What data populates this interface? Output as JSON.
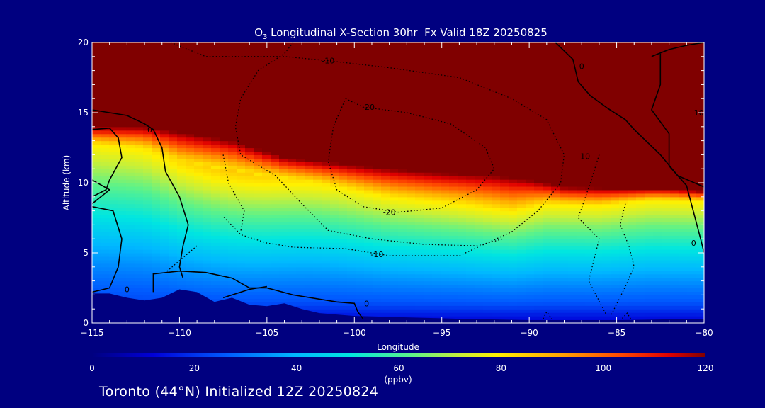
{
  "footer": "Toronto (44°N) Initialized 12Z 20250824",
  "chart_data": {
    "type": "heatmap",
    "title_prefix": "O",
    "title_subscript": "3",
    "title_rest": " Longitudinal X-Section 30hr  Fx Valid 18Z 20250825",
    "xlabel": "Longitude",
    "ylabel": "Altitude (km)",
    "xlim": [
      -115,
      -80
    ],
    "ylim": [
      0,
      20
    ],
    "x_ticks": [
      -115,
      -110,
      -105,
      -100,
      -95,
      -90,
      -85,
      -80
    ],
    "y_ticks": [
      0,
      5,
      10,
      15,
      20
    ],
    "colorbar": {
      "label": "(ppbv)",
      "range": [
        0,
        120
      ],
      "ticks": [
        0,
        20,
        40,
        60,
        80,
        100,
        120
      ]
    },
    "colors": {
      "background": "#000080",
      "terrain": "#000080",
      "high_ozone": "#800000"
    },
    "ozone_field": {
      "description_free": true,
      "tropopause_height_km": [
        [
          -115,
          14.0
        ],
        [
          -112,
          14.0
        ],
        [
          -110,
          13.6
        ],
        [
          -107,
          13.0
        ],
        [
          -104,
          11.8
        ],
        [
          -101,
          11.4
        ],
        [
          -98,
          11.0
        ],
        [
          -95,
          10.7
        ],
        [
          -92,
          10.5
        ],
        [
          -90,
          10.2
        ],
        [
          -88,
          9.7
        ],
        [
          -85,
          9.6
        ],
        [
          -82,
          9.6
        ],
        [
          -80,
          9.4
        ]
      ],
      "mid_maximum": [
        [
          -115,
          12.8
        ],
        [
          -112,
          12.5
        ],
        [
          -110,
          11.5
        ],
        [
          -105,
          10.5
        ],
        [
          -102,
          10.0
        ],
        [
          -98,
          9.0
        ],
        [
          -94,
          8.5
        ],
        [
          -91,
          8.0
        ],
        [
          -89,
          8.5
        ],
        [
          -86,
          8.4
        ],
        [
          -83,
          8.8
        ],
        [
          -80,
          8.7
        ]
      ]
    },
    "terrain_km": [
      [
        -115,
        2.1
      ],
      [
        -114,
        2.1
      ],
      [
        -113,
        1.8
      ],
      [
        -112,
        1.6
      ],
      [
        -111,
        1.8
      ],
      [
        -110,
        2.4
      ],
      [
        -109,
        2.2
      ],
      [
        -108,
        1.5
      ],
      [
        -107,
        1.8
      ],
      [
        -106,
        1.3
      ],
      [
        -105,
        1.2
      ],
      [
        -104,
        1.4
      ],
      [
        -103,
        1.0
      ],
      [
        -102,
        0.7
      ],
      [
        -100,
        0.5
      ],
      [
        -97,
        0.4
      ],
      [
        -94,
        0.3
      ],
      [
        -90,
        0.2
      ],
      [
        -85,
        0.2
      ],
      [
        -80,
        0.3
      ]
    ],
    "contour_labels": [
      {
        "text": "-10",
        "x": -101.5,
        "y": 18.7
      },
      {
        "text": "-20",
        "x": -99.2,
        "y": 15.4
      },
      {
        "text": "-20",
        "x": -98.0,
        "y": 7.9
      },
      {
        "text": "-10",
        "x": -98.7,
        "y": 4.9
      },
      {
        "text": "10",
        "x": -80.3,
        "y": 15.0
      },
      {
        "text": "10",
        "x": -86.8,
        "y": 11.9
      },
      {
        "text": "0",
        "x": -113.0,
        "y": 2.4
      },
      {
        "text": "0",
        "x": -111.7,
        "y": 13.8
      },
      {
        "text": "0",
        "x": -99.3,
        "y": 1.4
      },
      {
        "text": "0",
        "x": -87.0,
        "y": 18.3
      },
      {
        "text": "0",
        "x": -80.6,
        "y": 5.7
      }
    ],
    "solid_contours": [
      [
        [
          -115,
          15.2
        ],
        [
          -114,
          15.0
        ],
        [
          -113,
          14.8
        ],
        [
          -112,
          14.2
        ],
        [
          -111.5,
          13.8
        ],
        [
          -111,
          12.5
        ],
        [
          -110.8,
          10.8
        ],
        [
          -110,
          9.0
        ],
        [
          -109.5,
          7.0
        ],
        [
          -109.8,
          5.5
        ],
        [
          -110,
          4.0
        ],
        [
          -109.8,
          3.2
        ]
      ],
      [
        [
          -115,
          13.8
        ],
        [
          -114,
          13.9
        ],
        [
          -113.5,
          13.2
        ],
        [
          -113.3,
          11.8
        ],
        [
          -114.0,
          10.2
        ],
        [
          -114.2,
          9.5
        ],
        [
          -115,
          9.0
        ]
      ],
      [
        [
          -115,
          10.2
        ],
        [
          -114,
          9.5
        ],
        [
          -115,
          8.5
        ]
      ],
      [
        [
          -115,
          2.2
        ],
        [
          -114,
          2.5
        ],
        [
          -113.5,
          4.0
        ],
        [
          -113.3,
          6.0
        ],
        [
          -113.8,
          8.0
        ],
        [
          -115,
          8.3
        ]
      ],
      [
        [
          -111.5,
          2.2
        ],
        [
          -111.5,
          3.5
        ],
        [
          -110,
          3.7
        ],
        [
          -108.5,
          3.6
        ],
        [
          -107,
          3.2
        ],
        [
          -106,
          2.5
        ],
        [
          -105,
          2.5
        ],
        [
          -103.5,
          2.0
        ],
        [
          -101,
          1.5
        ],
        [
          -100,
          1.4
        ],
        [
          -99.8,
          0.8
        ],
        [
          -99.5,
          0.3
        ]
      ],
      [
        [
          -107.5,
          1.8
        ],
        [
          -106,
          2.4
        ],
        [
          -105,
          2.6
        ]
      ],
      [
        [
          -88.5,
          20
        ],
        [
          -87.5,
          18.8
        ],
        [
          -87.2,
          17.2
        ],
        [
          -86.5,
          16.2
        ],
        [
          -85.5,
          15.3
        ],
        [
          -84.5,
          14.5
        ],
        [
          -84,
          13.8
        ],
        [
          -82.5,
          12.0
        ],
        [
          -81.5,
          10.5
        ],
        [
          -80,
          9.7
        ]
      ],
      [
        [
          -83,
          19.0
        ],
        [
          -82,
          19.5
        ],
        [
          -81,
          19.8
        ],
        [
          -80,
          20
        ]
      ],
      [
        [
          -82.5,
          19.2
        ],
        [
          -82.5,
          17.0
        ],
        [
          -83.0,
          15.2
        ],
        [
          -82.0,
          13.5
        ],
        [
          -82.0,
          11.2
        ],
        [
          -81.0,
          9.8
        ],
        [
          -80.2,
          6.0
        ],
        [
          -80,
          5.0
        ]
      ]
    ],
    "dotted_contours": [
      [
        [
          -103.5,
          20
        ],
        [
          -104.0,
          19.2
        ],
        [
          -105.5,
          18.0
        ],
        [
          -106.5,
          16.0
        ],
        [
          -106.8,
          14.0
        ],
        [
          -106.5,
          12.0
        ],
        [
          -104.5,
          10.5
        ],
        [
          -103.0,
          8.5
        ],
        [
          -101.5,
          6.6
        ],
        [
          -99.0,
          6.0
        ],
        [
          -96.0,
          5.6
        ],
        [
          -93.0,
          5.5
        ],
        [
          -91.5,
          6.0
        ]
      ],
      [
        [
          -110.5,
          20
        ],
        [
          -108.5,
          19.0
        ],
        [
          -104.0,
          19.0
        ],
        [
          -101.5,
          18.7
        ],
        [
          -98.0,
          18.2
        ],
        [
          -94.0,
          17.5
        ],
        [
          -91.0,
          16.0
        ],
        [
          -89.0,
          14.5
        ],
        [
          -88.0,
          12.0
        ],
        [
          -88.2,
          10.0
        ],
        [
          -89.5,
          8.0
        ],
        [
          -91.0,
          6.5
        ],
        [
          -94.0,
          4.8
        ],
        [
          -98.0,
          4.8
        ],
        [
          -100.5,
          5.3
        ],
        [
          -103.5,
          5.4
        ],
        [
          -105.0,
          5.7
        ],
        [
          -106.5,
          6.3
        ],
        [
          -107.5,
          7.6
        ]
      ],
      [
        [
          -100.5,
          16.0
        ],
        [
          -99.5,
          15.4
        ],
        [
          -97.0,
          15.0
        ],
        [
          -94.5,
          14.2
        ],
        [
          -92.5,
          12.5
        ],
        [
          -92.0,
          11.0
        ],
        [
          -93.0,
          9.5
        ],
        [
          -95.0,
          8.2
        ],
        [
          -97.5,
          7.9
        ],
        [
          -99.5,
          8.3
        ],
        [
          -101.0,
          9.5
        ],
        [
          -101.5,
          11.5
        ],
        [
          -101.2,
          14.0
        ],
        [
          -100.5,
          16.0
        ]
      ],
      [
        [
          -107.5,
          12.0
        ],
        [
          -107.2,
          10.0
        ],
        [
          -106.3,
          8.0
        ],
        [
          -106.5,
          6.5
        ]
      ],
      [
        [
          -86.0,
          12.0
        ],
        [
          -86.5,
          10.0
        ],
        [
          -87.2,
          7.5
        ],
        [
          -86.0,
          6.0
        ],
        [
          -86.3,
          4.5
        ],
        [
          -86.6,
          3.0
        ],
        [
          -85.6,
          0.6
        ]
      ],
      [
        [
          -84.5,
          8.5
        ],
        [
          -84.8,
          7.0
        ],
        [
          -84.3,
          5.5
        ],
        [
          -84.0,
          4.0
        ],
        [
          -84.5,
          2.6
        ],
        [
          -85.3,
          0.6
        ]
      ],
      [
        [
          -89.2,
          0.3
        ],
        [
          -89.0,
          0.8
        ],
        [
          -88.7,
          0.3
        ]
      ],
      [
        [
          -84.2,
          0.3
        ],
        [
          -84.4,
          0.7
        ],
        [
          -84.7,
          0.3
        ]
      ],
      [
        [
          -109.0,
          5.5
        ],
        [
          -110.8,
          3.6
        ]
      ]
    ]
  }
}
